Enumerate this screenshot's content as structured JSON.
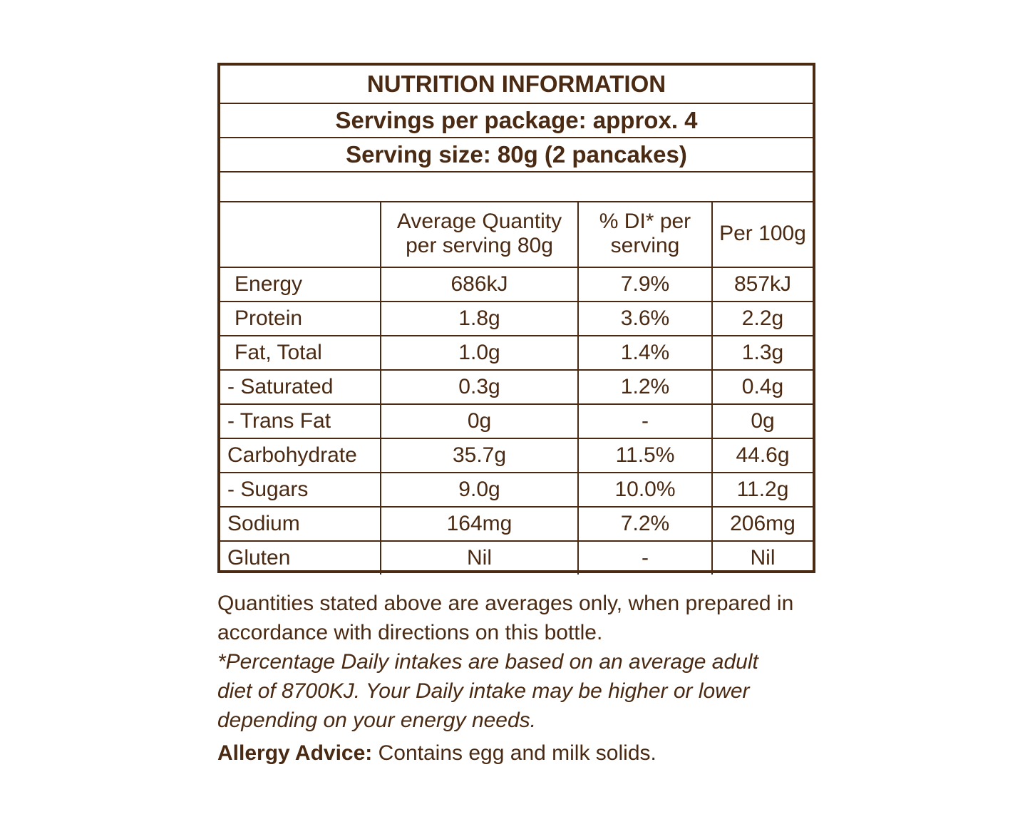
{
  "panel": {
    "title": "NUTRITION INFORMATION",
    "servings": "Servings per package: approx. 4",
    "serving_size": "Serving size: 80g (2 pancakes)"
  },
  "table": {
    "headers": [
      "",
      "Average Quantity per serving 80g",
      "% DI* per serving",
      "Per 100g"
    ],
    "rows": [
      [
        "Energy",
        "686kJ",
        "7.9%",
        "857kJ"
      ],
      [
        "Protein",
        "1.8g",
        "3.6%",
        "2.2g"
      ],
      [
        "Fat, Total",
        "1.0g",
        "1.4%",
        "1.3g"
      ],
      [
        "- Saturated",
        "0.3g",
        "1.2%",
        "0.4g"
      ],
      [
        "- Trans Fat",
        "0g",
        "-",
        "0g"
      ],
      [
        "Carbohydrate",
        "35.7g",
        "11.5%",
        "44.6g"
      ],
      [
        "- Sugars",
        "9.0g",
        "10.0%",
        "11.2g"
      ],
      [
        "Sodium",
        "164mg",
        "7.2%",
        "206mg"
      ],
      [
        "Gluten",
        "Nil",
        "-",
        "Nil"
      ]
    ]
  },
  "notes": {
    "quantities": "Quantities stated above are averages only, when prepared in accordance with directions on this bottle.",
    "di_note": "*Percentage Daily intakes are based on an average adult diet of 8700KJ. Your Daily intake may be higher or lower depending on your energy needs."
  },
  "allergy": {
    "label": "Allergy Advice:",
    "text": " Contains egg and milk solids."
  },
  "colors": {
    "text": "#4a2a12",
    "border": "#4a2a12",
    "background": "#ffffff"
  }
}
